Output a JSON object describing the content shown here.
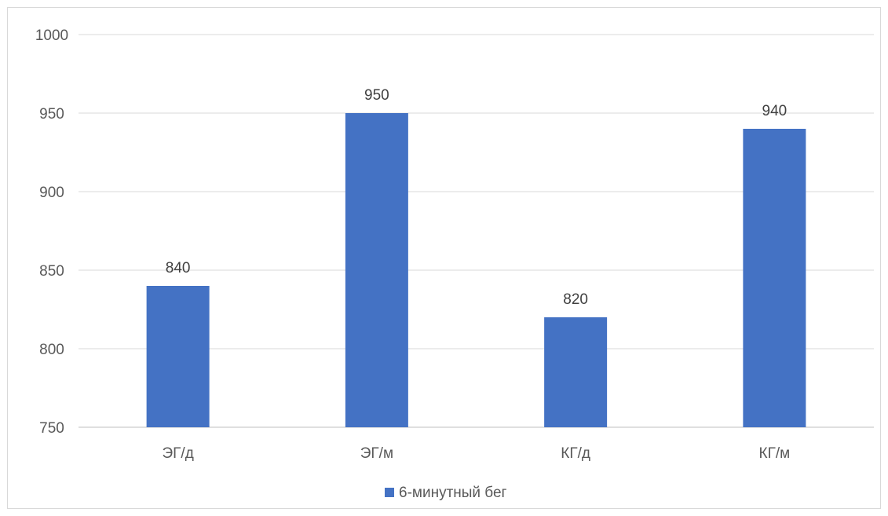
{
  "chart_data": {
    "type": "bar",
    "categories": [
      "ЭГ/д",
      "ЭГ/м",
      "КГ/д",
      "КГ/м"
    ],
    "series": [
      {
        "name": "6-минутный бег",
        "values": [
          840,
          950,
          820,
          940
        ],
        "color": "#4472c4"
      }
    ],
    "ylim": [
      750,
      1000
    ],
    "yticks": [
      "750",
      "800",
      "850",
      "900",
      "950",
      "1000"
    ],
    "data_labels": [
      "840",
      "950",
      "820",
      "940"
    ],
    "grid": true,
    "legend": "bottom",
    "title": "",
    "xlabel": "",
    "ylabel": ""
  }
}
